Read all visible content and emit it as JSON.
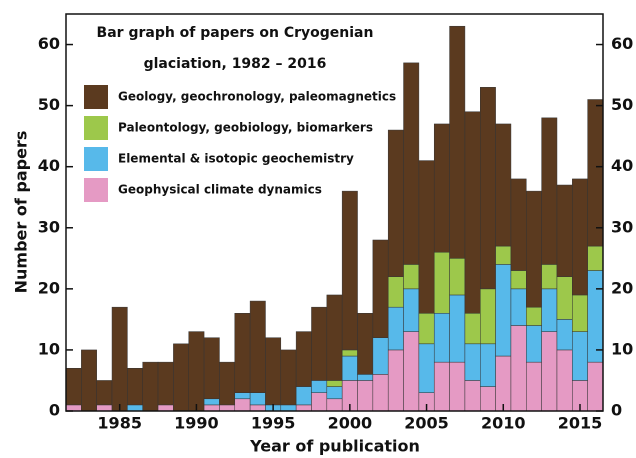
{
  "chart_data": {
    "type": "stacked-bar",
    "title": [
      "Bar graph of papers on Cryogenian",
      "glaciation, 1982 – 2016"
    ],
    "x_label": "Year of publication",
    "y_label": "Number of papers",
    "x": [
      1982,
      1983,
      1984,
      1985,
      1986,
      1987,
      1988,
      1989,
      1990,
      1991,
      1992,
      1993,
      1994,
      1995,
      1996,
      1997,
      1998,
      1999,
      2000,
      2001,
      2002,
      2003,
      2004,
      2005,
      2006,
      2007,
      2008,
      2009,
      2010,
      2011,
      2012,
      2013,
      2014,
      2015,
      2016
    ],
    "xlim": [
      1981.5,
      2016.5
    ],
    "xticks": [
      1985,
      1990,
      1995,
      2000,
      2005,
      2010,
      2015
    ],
    "ylim": [
      0,
      65
    ],
    "yticks": [
      0,
      10,
      20,
      30,
      40,
      50,
      60
    ],
    "series": [
      {
        "name": "Geology, geochronology, paleomagnetics",
        "color": "#5b3a1f",
        "values": [
          6,
          10,
          4,
          17,
          6,
          8,
          7,
          11,
          13,
          10,
          7,
          13,
          15,
          11,
          9,
          9,
          12,
          14,
          26,
          10,
          16,
          24,
          33,
          25,
          21,
          38,
          33,
          33,
          20,
          15,
          19,
          24,
          15,
          19,
          24
        ]
      },
      {
        "name": "Paleontology, geobiology, biomarkers",
        "color": "#9dc84b",
        "values": [
          0,
          0,
          0,
          0,
          0,
          0,
          0,
          0,
          0,
          0,
          0,
          0,
          0,
          0,
          0,
          0,
          0,
          1,
          1,
          0,
          0,
          5,
          4,
          5,
          10,
          6,
          5,
          9,
          3,
          3,
          3,
          4,
          7,
          6,
          4
        ]
      },
      {
        "name": "Elemental & isotopic geochemistry",
        "color": "#57b9ea",
        "values": [
          0,
          0,
          0,
          0,
          1,
          0,
          0,
          0,
          0,
          1,
          0,
          1,
          2,
          1,
          1,
          3,
          2,
          2,
          4,
          1,
          6,
          7,
          7,
          8,
          8,
          11,
          6,
          7,
          15,
          6,
          6,
          7,
          5,
          8,
          15
        ]
      },
      {
        "name": "Geophysical climate dynamics",
        "color": "#e59ac4",
        "values": [
          1,
          0,
          1,
          0,
          0,
          0,
          1,
          0,
          0,
          1,
          1,
          2,
          1,
          0,
          0,
          1,
          3,
          2,
          5,
          5,
          6,
          10,
          13,
          3,
          8,
          8,
          5,
          4,
          9,
          14,
          8,
          13,
          10,
          5,
          8
        ]
      }
    ]
  }
}
